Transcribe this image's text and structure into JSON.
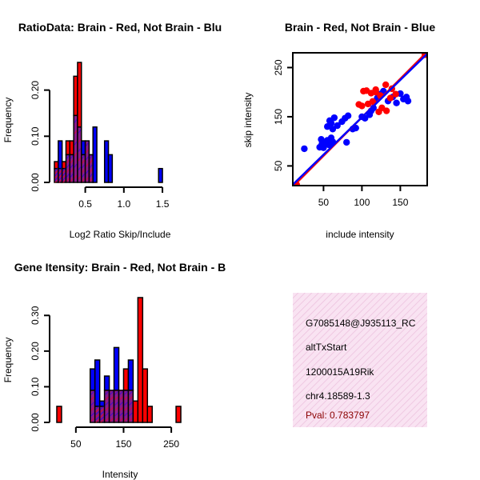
{
  "colors": {
    "red": "#ff0000",
    "blue": "#0000ff",
    "purple": "#a020f0",
    "overlap": "#8b1a8b",
    "info_bg": "#f6d7ec",
    "pval": "#8b0000"
  },
  "chart_data": [
    {
      "id": "ratio",
      "type": "bar",
      "title": "RatioData: Brain - Red, Not Brain - Blu",
      "xlabel": "Log2 Ratio Skip/Include",
      "ylabel": "Frequency",
      "xlim": [
        0.1,
        1.8
      ],
      "ylim": [
        0,
        0.26
      ],
      "xticks": [
        0.5,
        1.0,
        1.5
      ],
      "xtick_labels": [
        "0.5",
        "1.0",
        "1.5"
      ],
      "yticks": [
        0.0,
        0.1,
        0.2
      ],
      "ytick_labels": [
        "0.00",
        "0.10",
        "0.20"
      ],
      "bin_width": 0.05,
      "bin_start": 0.1,
      "series": [
        {
          "name": "Brain",
          "color": "red",
          "values": [
            0.045,
            0.03,
            0.045,
            0.09,
            0.09,
            0.23,
            0.26,
            0.06,
            0.09,
            0.06,
            0,
            0,
            0,
            0,
            0,
            0,
            0,
            0,
            0,
            0,
            0,
            0,
            0,
            0,
            0,
            0,
            0,
            0,
            0,
            0,
            0,
            0,
            0,
            0
          ]
        },
        {
          "name": "Not Brain",
          "color": "blue",
          "values": [
            0.03,
            0.09,
            0.03,
            0.06,
            0.06,
            0.145,
            0.12,
            0.09,
            0.09,
            0.06,
            0.12,
            0,
            0,
            0.09,
            0.06,
            0,
            0,
            0,
            0,
            0,
            0,
            0,
            0,
            0,
            0,
            0,
            0,
            0.03,
            0,
            0,
            0,
            0,
            0,
            0
          ]
        }
      ]
    },
    {
      "id": "scatter",
      "type": "scatter",
      "title": "Brain - Red, Not Brain - Blue",
      "xlabel": "include intensity",
      "ylabel": "skip intensity",
      "xlim": [
        10,
        185
      ],
      "ylim": [
        10,
        280
      ],
      "xticks": [
        50,
        100,
        150
      ],
      "xtick_labels": [
        "50",
        "100",
        "150"
      ],
      "yticks": [
        50,
        150,
        250
      ],
      "ytick_labels": [
        "50",
        "150",
        "250"
      ],
      "series": [
        {
          "name": "Brain",
          "color": "red",
          "points": [
            [
              15,
              12
            ],
            [
              102,
              202
            ],
            [
              106,
              203
            ],
            [
              112,
              198
            ],
            [
              118,
              205
            ],
            [
              124,
              193
            ],
            [
              131,
              215
            ],
            [
              139,
              207
            ],
            [
              144,
              196
            ],
            [
              108,
              176
            ],
            [
              114,
              181
            ],
            [
              126,
              168
            ],
            [
              122,
              160
            ],
            [
              132,
              162
            ],
            [
              96,
              175
            ],
            [
              100,
              172
            ],
            [
              137,
              188
            ],
            [
              118,
              200
            ],
            [
              182,
              276
            ]
          ]
        },
        {
          "name": "Not Brain",
          "color": "blue",
          "points": [
            [
              25,
              85
            ],
            [
              45,
              88
            ],
            [
              47,
              104
            ],
            [
              48,
              95
            ],
            [
              50,
              87
            ],
            [
              52,
              98
            ],
            [
              55,
              102
            ],
            [
              57,
              93
            ],
            [
              60,
              107
            ],
            [
              62,
              99
            ],
            [
              55,
              130
            ],
            [
              58,
              142
            ],
            [
              60,
              137
            ],
            [
              64,
              148
            ],
            [
              62,
              125
            ],
            [
              68,
              132
            ],
            [
              74,
              140
            ],
            [
              78,
              147
            ],
            [
              82,
              152
            ],
            [
              80,
              98
            ],
            [
              88,
              125
            ],
            [
              92,
              127
            ],
            [
              100,
              150
            ],
            [
              104,
              147
            ],
            [
              110,
              154
            ],
            [
              112,
              162
            ],
            [
              115,
              168
            ],
            [
              116,
              180
            ],
            [
              120,
              188
            ],
            [
              122,
              196
            ],
            [
              128,
              202
            ],
            [
              134,
              182
            ],
            [
              140,
              190
            ],
            [
              150,
              197
            ],
            [
              154,
              186
            ],
            [
              160,
              182
            ],
            [
              158,
              190
            ],
            [
              145,
              178
            ]
          ]
        }
      ],
      "fit_lines": [
        {
          "name": "Brain fit",
          "color": "red",
          "from": [
            10,
            8
          ],
          "to": [
            185,
            282
          ]
        },
        {
          "name": "Not Brain fit",
          "color": "blue",
          "from": [
            10,
            12
          ],
          "to": [
            185,
            278
          ]
        }
      ]
    },
    {
      "id": "intensity",
      "type": "bar",
      "title": "Gene Itensity: Brain - Red, Not Brain - B",
      "xlabel": "Intensity",
      "ylabel": "Frequency",
      "xlim": [
        5,
        280
      ],
      "ylim": [
        0,
        0.35
      ],
      "xticks": [
        50,
        150,
        250
      ],
      "xtick_labels": [
        "50",
        "150",
        "250"
      ],
      "yticks": [
        0.0,
        0.1,
        0.2,
        0.3
      ],
      "ytick_labels": [
        "0.00",
        "0.10",
        "0.20",
        "0.30"
      ],
      "bin_width": 10,
      "bin_start": 10,
      "series": [
        {
          "name": "Brain",
          "color": "red",
          "values": [
            0.045,
            0,
            0,
            0,
            0,
            0,
            0,
            0.09,
            0.045,
            0.045,
            0.09,
            0.09,
            0.09,
            0.09,
            0.15,
            0.09,
            0.06,
            0.35,
            0.15,
            0.045,
            0,
            0,
            0,
            0,
            0,
            0.045
          ]
        },
        {
          "name": "Not Brain",
          "color": "blue",
          "values": [
            0,
            0,
            0,
            0,
            0,
            0,
            0,
            0.15,
            0.175,
            0.06,
            0.13,
            0.09,
            0.21,
            0.09,
            0.09,
            0.175,
            0,
            0,
            0,
            0,
            0,
            0,
            0,
            0,
            0,
            0
          ]
        }
      ]
    }
  ],
  "info_panel": {
    "id_line": "G7085148@J935113_RC",
    "event": "altTxStart",
    "gene": "1200015A19Rik",
    "location": "chr4.18589-1.3",
    "pval": "Pval: 0.783797"
  }
}
